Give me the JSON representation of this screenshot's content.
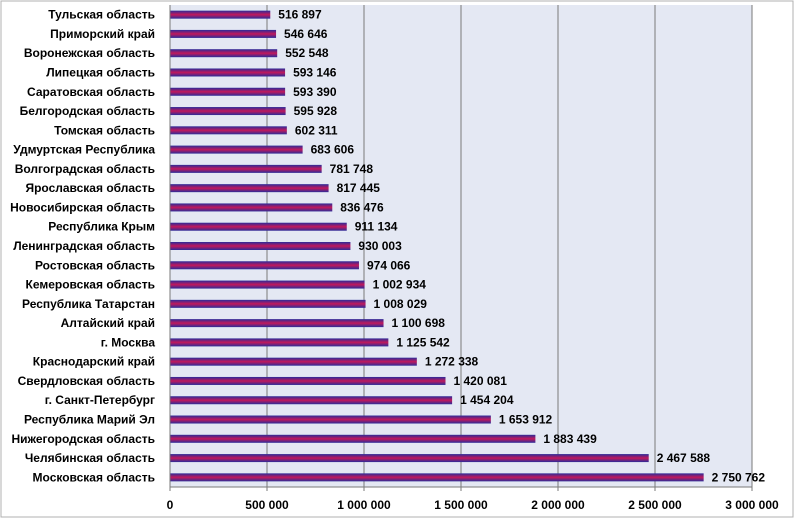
{
  "chart_data": {
    "type": "bar",
    "orientation": "horizontal",
    "categories": [
      "Тульская область",
      "Приморский край",
      "Воронежская область",
      "Липецкая область",
      "Саратовская область",
      "Белгородская область",
      "Томская область",
      "Удмуртская Республика",
      "Волгоградская область",
      "Ярославская область",
      "Новосибирская область",
      "Республика Крым",
      "Ленинградская область",
      "Ростовская область",
      "Кемеровская область",
      "Республика Татарстан",
      "Алтайский край",
      "г. Москва",
      "Краснодарский край",
      "Свердловская область",
      "г. Санкт-Петербург",
      "Республика Марий Эл",
      "Нижегородская область",
      "Челябинская область",
      "Московская область"
    ],
    "values": [
      516897,
      546646,
      552548,
      593146,
      593390,
      595928,
      602311,
      683606,
      781748,
      817445,
      836476,
      911134,
      930003,
      974066,
      1002934,
      1008029,
      1100698,
      1125542,
      1272338,
      1420081,
      1454204,
      1653912,
      1883439,
      2467588,
      2750762
    ],
    "value_labels": [
      "516 897",
      "546 646",
      "552 548",
      "593 146",
      "593 390",
      "595 928",
      "602 311",
      "683 606",
      "781 748",
      "817 445",
      "836 476",
      "911 134",
      "930 003",
      "974 066",
      "1 002 934",
      "1 008 029",
      "1 100 698",
      "1 125 542",
      "1 272 338",
      "1 420 081",
      "1 454 204",
      "1 653 912",
      "1 883 439",
      "2 467 588",
      "2 750 762"
    ],
    "xlim": [
      0,
      3000000
    ],
    "x_ticks": [
      0,
      500000,
      1000000,
      1500000,
      2000000,
      2500000,
      3000000
    ],
    "x_tick_labels": [
      "0",
      "500 000",
      "1 000 000",
      "1 500 000",
      "2 000 000",
      "2 500 000",
      "3 000 000"
    ],
    "grid": "vertical",
    "legend": "none",
    "title": "",
    "xlabel": "",
    "ylabel": "",
    "colors": {
      "bar_edge": "#2b2b9a",
      "bar_mid": "#c2185b",
      "plot_background": "#e4e8f3",
      "grid": "#7a7a7a"
    }
  }
}
